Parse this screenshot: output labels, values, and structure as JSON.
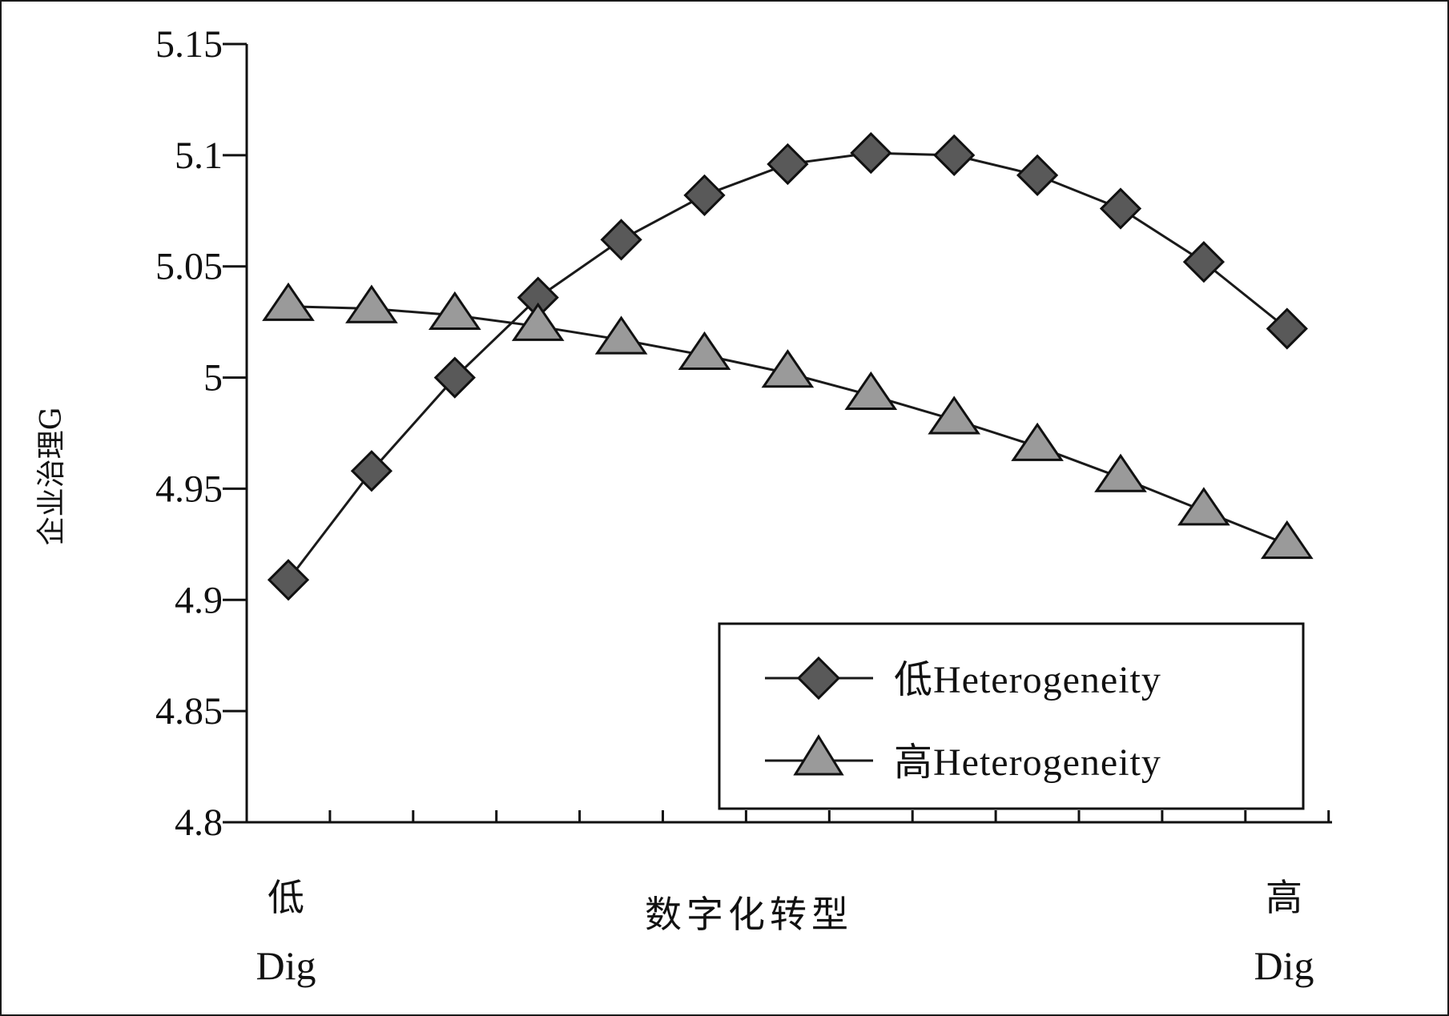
{
  "chart_data": {
    "type": "line",
    "title": "",
    "xlabel": "数字化转型",
    "ylabel": "企业治理G",
    "x_end_labels": {
      "left": {
        "top": "低",
        "bottom": "Dig"
      },
      "right": {
        "top": "高",
        "bottom": "Dig"
      }
    },
    "ylim": [
      4.8,
      5.15
    ],
    "yticks": [
      "4.8",
      "4.85",
      "4.9",
      "4.95",
      "5",
      "5.05",
      "5.1",
      "5.15"
    ],
    "grid": false,
    "legend_position": "bottom-right",
    "x": [
      1,
      2,
      3,
      4,
      5,
      6,
      7,
      8,
      9,
      10,
      11,
      12,
      13
    ],
    "series": [
      {
        "name": "低Heterogeneity",
        "marker": "diamond",
        "color": "#595959",
        "values": [
          4.909,
          4.958,
          5.0,
          5.036,
          5.062,
          5.082,
          5.096,
          5.101,
          5.1,
          5.091,
          5.076,
          5.052,
          5.022
        ]
      },
      {
        "name": "高Heterogeneity",
        "marker": "triangle",
        "color": "#9a9a9a",
        "values": [
          5.032,
          5.031,
          5.028,
          5.023,
          5.017,
          5.01,
          5.002,
          4.992,
          4.981,
          4.969,
          4.955,
          4.94,
          4.925
        ]
      }
    ]
  }
}
